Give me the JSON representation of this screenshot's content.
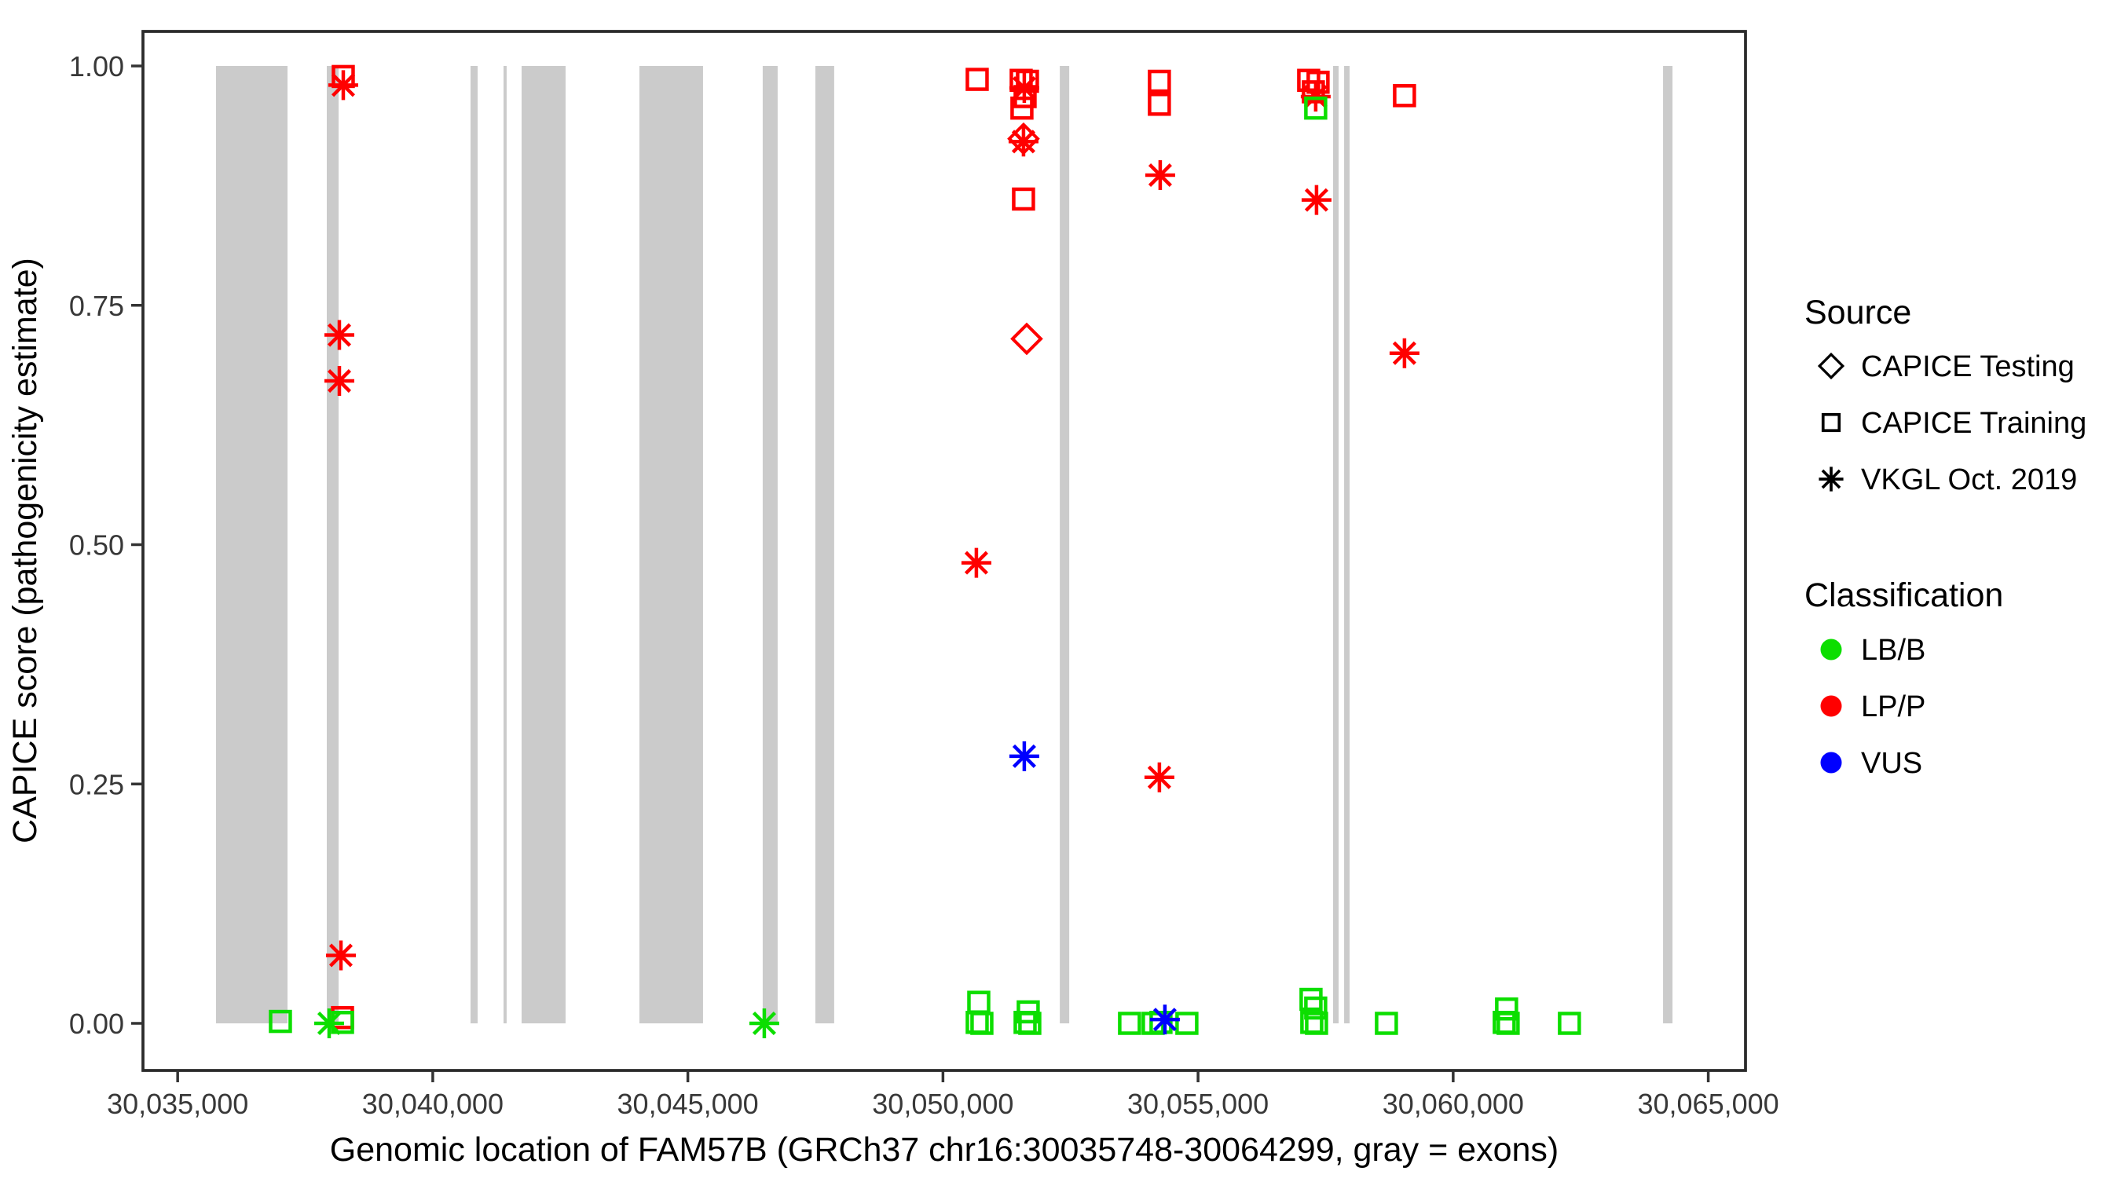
{
  "colors": {
    "lbb": "#0CDE00",
    "lpp": "#FF0000",
    "vus": "#0000FF",
    "exon": "#CBCBCB",
    "axis": "#333333",
    "panel_border": "#2B2B2B"
  },
  "chart_data": {
    "type": "scatter",
    "xlabel": "Genomic location of FAM57B (GRCh37 chr16:30035748-30064299, gray = exons)",
    "ylabel": "CAPICE score (pathogenicity estimate)",
    "x_domain": [
      30034320,
      30065730
    ],
    "y_domain": [
      -0.049,
      1.036
    ],
    "grid": "off",
    "x_ticks": [
      {
        "label": "30,035,000",
        "value": 30035000
      },
      {
        "label": "30,040,000",
        "value": 30040000
      },
      {
        "label": "30,045,000",
        "value": 30045000
      },
      {
        "label": "30,050,000",
        "value": 30050000
      },
      {
        "label": "30,055,000",
        "value": 30055000
      },
      {
        "label": "30,060,000",
        "value": 30060000
      },
      {
        "label": "30,065,000",
        "value": 30065000
      }
    ],
    "y_ticks": [
      {
        "label": "0.00",
        "value": 0.0
      },
      {
        "label": "0.25",
        "value": 0.25
      },
      {
        "label": "0.50",
        "value": 0.5
      },
      {
        "label": "0.75",
        "value": 0.75
      },
      {
        "label": "1.00",
        "value": 1.0
      }
    ],
    "exons": [
      [
        30035752,
        30037153
      ],
      [
        30037923,
        30038154
      ],
      [
        30040740,
        30040879
      ],
      [
        30041387,
        30041448
      ],
      [
        30041741,
        30042603
      ],
      [
        30044050,
        30045297
      ],
      [
        30046467,
        30046760
      ],
      [
        30047499,
        30047868
      ],
      [
        30052290,
        30052475
      ],
      [
        30057647,
        30057755
      ],
      [
        30057863,
        30057970
      ],
      [
        30064114,
        30064299
      ]
    ],
    "points": [
      {
        "x": 30037014,
        "y": 0.002,
        "source": "training",
        "class": "LB/B"
      },
      {
        "x": 30037969,
        "y": 0.0,
        "source": "vkgl",
        "class": "LB/B"
      },
      {
        "x": 30038231,
        "y": 0.006,
        "source": "training",
        "class": "LP/P"
      },
      {
        "x": 30038231,
        "y": 0.001,
        "source": "training",
        "class": "LB/B"
      },
      {
        "x": 30038246,
        "y": 0.989,
        "source": "training",
        "class": "LP/P"
      },
      {
        "x": 30038246,
        "y": 0.98,
        "source": "vkgl",
        "class": "LP/P"
      },
      {
        "x": 30038169,
        "y": 0.719,
        "source": "vkgl",
        "class": "LP/P"
      },
      {
        "x": 30038169,
        "y": 0.671,
        "source": "vkgl",
        "class": "LP/P"
      },
      {
        "x": 30038200,
        "y": 0.071,
        "source": "vkgl",
        "class": "LP/P"
      },
      {
        "x": 30046498,
        "y": 0.0,
        "source": "vkgl",
        "class": "LB/B"
      },
      {
        "x": 30050671,
        "y": 0.986,
        "source": "training",
        "class": "LP/P"
      },
      {
        "x": 30051533,
        "y": 0.985,
        "source": "training",
        "class": "LP/P"
      },
      {
        "x": 30051656,
        "y": 0.984,
        "source": "training",
        "class": "LP/P"
      },
      {
        "x": 30051594,
        "y": 0.977,
        "source": "vkgl",
        "class": "LP/P"
      },
      {
        "x": 30051610,
        "y": 0.968,
        "source": "training",
        "class": "LP/P"
      },
      {
        "x": 30051548,
        "y": 0.956,
        "source": "training",
        "class": "LP/P"
      },
      {
        "x": 30051579,
        "y": 0.924,
        "source": "testing",
        "class": "LP/P"
      },
      {
        "x": 30051579,
        "y": 0.921,
        "source": "vkgl",
        "class": "LP/P"
      },
      {
        "x": 30051579,
        "y": 0.861,
        "source": "training",
        "class": "LP/P"
      },
      {
        "x": 30051641,
        "y": 0.715,
        "source": "testing",
        "class": "LP/P"
      },
      {
        "x": 30050655,
        "y": 0.481,
        "source": "vkgl",
        "class": "LP/P"
      },
      {
        "x": 30051594,
        "y": 0.279,
        "source": "vkgl",
        "class": "VUS"
      },
      {
        "x": 30050702,
        "y": 0.022,
        "source": "training",
        "class": "LB/B"
      },
      {
        "x": 30050671,
        "y": 0.001,
        "source": "training",
        "class": "LB/B"
      },
      {
        "x": 30050763,
        "y": 0.0,
        "source": "training",
        "class": "LB/B"
      },
      {
        "x": 30051671,
        "y": 0.012,
        "source": "training",
        "class": "LB/B"
      },
      {
        "x": 30051610,
        "y": 0.001,
        "source": "training",
        "class": "LB/B"
      },
      {
        "x": 30051702,
        "y": 0.0,
        "source": "training",
        "class": "LB/B"
      },
      {
        "x": 30054242,
        "y": 0.984,
        "source": "training",
        "class": "LP/P"
      },
      {
        "x": 30054242,
        "y": 0.96,
        "source": "training",
        "class": "LP/P"
      },
      {
        "x": 30054258,
        "y": 0.886,
        "source": "vkgl",
        "class": "LP/P"
      },
      {
        "x": 30054242,
        "y": 0.257,
        "source": "vkgl",
        "class": "LP/P"
      },
      {
        "x": 30053657,
        "y": 0.0,
        "source": "training",
        "class": "LB/B"
      },
      {
        "x": 30054119,
        "y": 0.0,
        "source": "training",
        "class": "LB/B"
      },
      {
        "x": 30054273,
        "y": 0.001,
        "source": "training",
        "class": "LB/B"
      },
      {
        "x": 30054350,
        "y": 0.004,
        "source": "vkgl",
        "class": "VUS"
      },
      {
        "x": 30054781,
        "y": 0.0,
        "source": "training",
        "class": "LB/B"
      },
      {
        "x": 30057168,
        "y": 0.985,
        "source": "training",
        "class": "LP/P"
      },
      {
        "x": 30057352,
        "y": 0.983,
        "source": "training",
        "class": "LP/P"
      },
      {
        "x": 30057260,
        "y": 0.973,
        "source": "training",
        "class": "LP/P"
      },
      {
        "x": 30057306,
        "y": 0.968,
        "source": "vkgl",
        "class": "LP/P"
      },
      {
        "x": 30057306,
        "y": 0.956,
        "source": "training",
        "class": "LB/B"
      },
      {
        "x": 30057322,
        "y": 0.86,
        "source": "vkgl",
        "class": "LP/P"
      },
      {
        "x": 30057214,
        "y": 0.025,
        "source": "training",
        "class": "LB/B"
      },
      {
        "x": 30057306,
        "y": 0.016,
        "source": "training",
        "class": "LB/B"
      },
      {
        "x": 30057229,
        "y": 0.001,
        "source": "training",
        "class": "LB/B"
      },
      {
        "x": 30057322,
        "y": 0.0,
        "source": "training",
        "class": "LB/B"
      },
      {
        "x": 30059046,
        "y": 0.969,
        "source": "training",
        "class": "LP/P"
      },
      {
        "x": 30059046,
        "y": 0.7,
        "source": "vkgl",
        "class": "LP/P"
      },
      {
        "x": 30058692,
        "y": 0.0,
        "source": "training",
        "class": "LB/B"
      },
      {
        "x": 30061047,
        "y": 0.015,
        "source": "training",
        "class": "LB/B"
      },
      {
        "x": 30061001,
        "y": 0.001,
        "source": "training",
        "class": "LB/B"
      },
      {
        "x": 30061078,
        "y": 0.0,
        "source": "training",
        "class": "LB/B"
      },
      {
        "x": 30062279,
        "y": 0.0,
        "source": "training",
        "class": "LB/B"
      }
    ],
    "legend": {
      "source_title": "Source",
      "source_items": [
        {
          "label": "CAPICE Testing",
          "shape": "diamond"
        },
        {
          "label": "CAPICE Training",
          "shape": "square"
        },
        {
          "label": "VKGL Oct. 2019",
          "shape": "asterisk"
        }
      ],
      "classification_title": "Classification",
      "classification_items": [
        {
          "label": "LB/B",
          "color_key": "lbb"
        },
        {
          "label": "LP/P",
          "color_key": "lpp"
        },
        {
          "label": "VUS",
          "color_key": "vus"
        }
      ],
      "position": "right"
    }
  }
}
